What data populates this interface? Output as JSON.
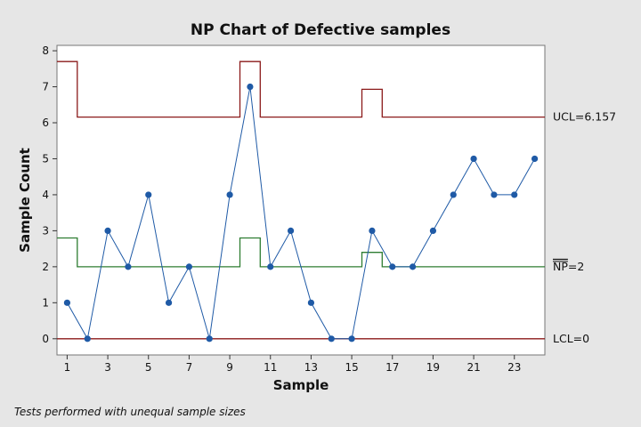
{
  "chart_data": {
    "type": "line",
    "title": "NP Chart of Defective samples",
    "xlabel": "Sample",
    "ylabel": "Sample Count",
    "footnote": "Tests performed with unequal sample sizes",
    "xlim": [
      0.5,
      24.5
    ],
    "ylim": [
      -0.45,
      8.15
    ],
    "x_ticks": [
      1,
      3,
      5,
      7,
      9,
      11,
      13,
      15,
      17,
      19,
      21,
      23
    ],
    "y_ticks": [
      0,
      1,
      2,
      3,
      4,
      5,
      6,
      7,
      8
    ],
    "grid": false,
    "colors": {
      "points": "#1f5aa6",
      "limits": "#8b1a1a",
      "center": "#2e7d32",
      "background": "#e6e6e6",
      "plot_area": "#ffffff"
    },
    "series": [
      {
        "x": [
          1,
          2,
          3,
          4,
          5,
          6,
          7,
          8,
          9,
          10,
          11,
          12,
          13,
          14,
          15,
          16,
          17,
          18,
          19,
          20,
          21,
          22,
          23,
          24
        ],
        "values": [
          1,
          0,
          3,
          2,
          4,
          1,
          2,
          0,
          4,
          7,
          2,
          3,
          1,
          0,
          0,
          3,
          2,
          2,
          3,
          4,
          5,
          4,
          4,
          5
        ]
      }
    ],
    "ucl_per_sample": [
      7.7,
      6.157,
      6.157,
      6.157,
      6.157,
      6.157,
      6.157,
      6.157,
      6.157,
      7.7,
      6.157,
      6.157,
      6.157,
      6.157,
      6.157,
      6.93,
      6.157,
      6.157,
      6.157,
      6.157,
      6.157,
      6.157,
      6.157,
      6.157
    ],
    "center_per_sample": [
      2.8,
      2,
      2,
      2,
      2,
      2,
      2,
      2,
      2,
      2.8,
      2,
      2,
      2,
      2,
      2,
      2.4,
      2,
      2,
      2,
      2,
      2,
      2,
      2,
      2
    ],
    "lcl_per_sample": [
      0,
      0,
      0,
      0,
      0,
      0,
      0,
      0,
      0,
      0,
      0,
      0,
      0,
      0,
      0,
      0,
      0,
      0,
      0,
      0,
      0,
      0,
      0,
      0
    ],
    "limit_labels": {
      "ucl": "UCL=6.157",
      "center_prefix": "NP",
      "center_suffix": "=2",
      "lcl": "LCL=0"
    }
  }
}
